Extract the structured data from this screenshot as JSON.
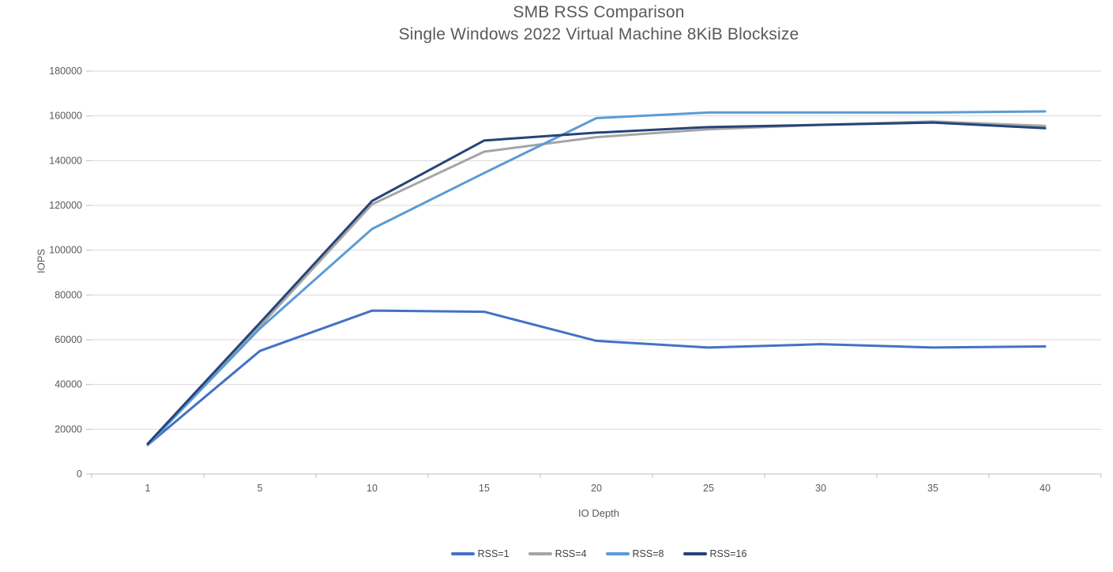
{
  "page": {
    "background": "#ffffff"
  },
  "chart_data": {
    "type": "line",
    "title": "SMB RSS Comparison",
    "subtitle": "Single Windows 2022 Virtual Machine 8KiB Blocksize",
    "xlabel": "IO Depth",
    "ylabel": "IOPS",
    "x_categories": [
      "1",
      "5",
      "10",
      "15",
      "20",
      "25",
      "30",
      "35",
      "40"
    ],
    "y_ticks": [
      0,
      20000,
      40000,
      60000,
      80000,
      100000,
      120000,
      140000,
      160000,
      180000
    ],
    "ylim": [
      0,
      180000
    ],
    "grid": "horizontal",
    "legend_position": "bottom",
    "series": [
      {
        "name": "RSS=1",
        "color": "#4472C4",
        "values": [
          13000,
          55000,
          73000,
          72500,
          59500,
          56500,
          58000,
          56500,
          57000
        ]
      },
      {
        "name": "RSS=4",
        "color": "#A5A5A5",
        "values": [
          13000,
          66000,
          120500,
          144000,
          150500,
          154000,
          156000,
          157500,
          155500
        ]
      },
      {
        "name": "RSS=8",
        "color": "#5B9BD5",
        "values": [
          13000,
          65000,
          109500,
          134500,
          159000,
          161500,
          161500,
          161500,
          162000
        ]
      },
      {
        "name": "RSS=16",
        "color": "#264478",
        "values": [
          13500,
          67500,
          122000,
          149000,
          152500,
          155000,
          156000,
          157000,
          154500
        ]
      }
    ],
    "colors": {
      "gridline": "#D9D9D9",
      "axis_line": "#BFBFBF",
      "tick_text": "#595959"
    }
  }
}
